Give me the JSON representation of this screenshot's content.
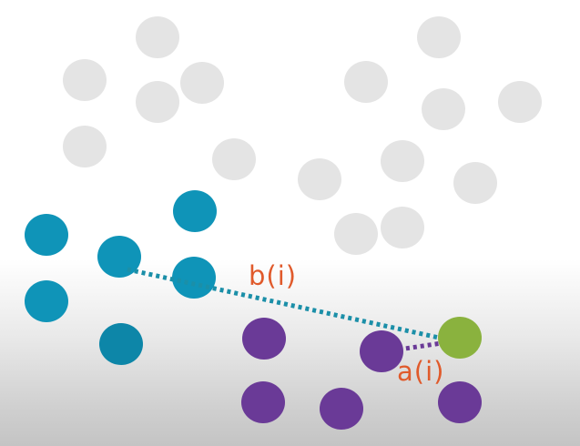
{
  "colors": {
    "background_cluster": "#e4e4e4",
    "cluster_b": "#0f94b8",
    "cluster_a": "#6a3a97",
    "point_i": "#8ab23e",
    "label": "#e05a2b"
  },
  "labels": {
    "b": "b(i)",
    "a": "a(i)"
  }
}
